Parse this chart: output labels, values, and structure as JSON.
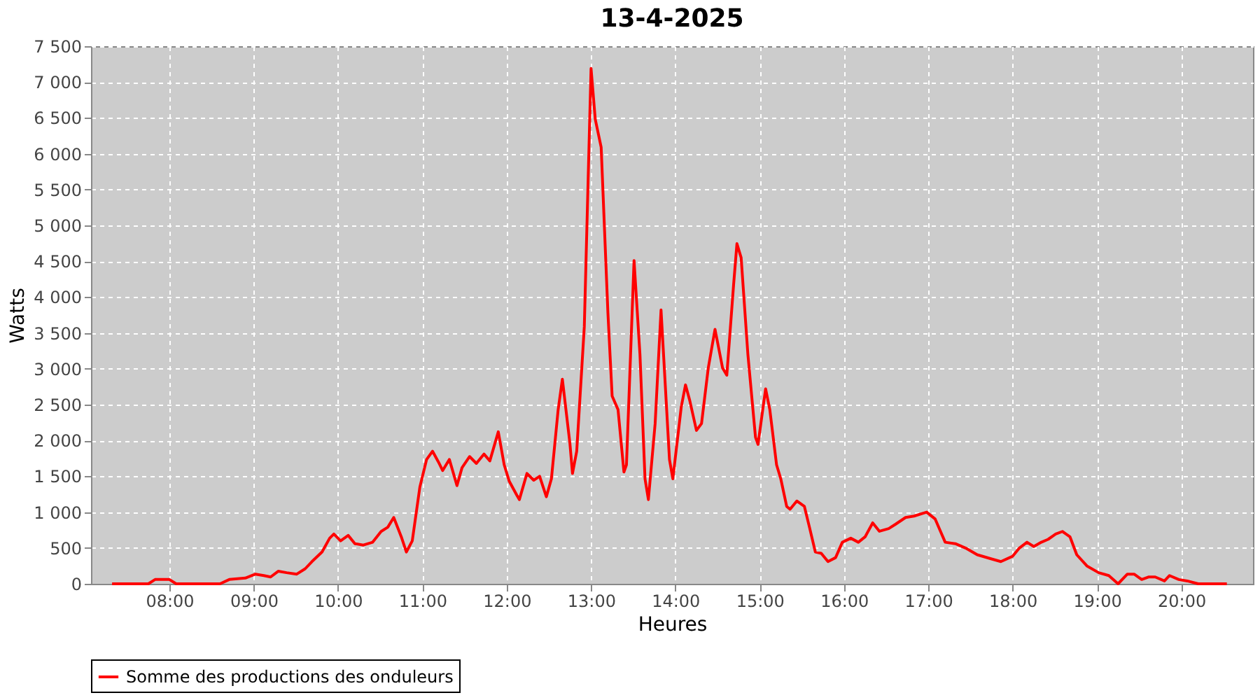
{
  "chart_data": {
    "type": "line",
    "title": "13-4-2025",
    "xlabel": "Heures",
    "ylabel": "Watts",
    "xlim": [
      7.07,
      20.85
    ],
    "xticks": [
      {
        "value": 8,
        "label": "08:00"
      },
      {
        "value": 9,
        "label": "09:00"
      },
      {
        "value": 10,
        "label": "10:00"
      },
      {
        "value": 11,
        "label": "11:00"
      },
      {
        "value": 12,
        "label": "12:00"
      },
      {
        "value": 13,
        "label": "13:00"
      },
      {
        "value": 14,
        "label": "14:00"
      },
      {
        "value": 15,
        "label": "15:00"
      },
      {
        "value": 16,
        "label": "16:00"
      },
      {
        "value": 17,
        "label": "17:00"
      },
      {
        "value": 18,
        "label": "18:00"
      },
      {
        "value": 19,
        "label": "19:00"
      },
      {
        "value": 20,
        "label": "20:00"
      }
    ],
    "ylim": [
      0,
      7500
    ],
    "yticks": [
      0,
      500,
      {
        "value": 1000,
        "label": "1 000"
      },
      {
        "value": 1500,
        "label": "1 500"
      },
      {
        "value": 2000,
        "label": "2 000"
      },
      {
        "value": 2500,
        "label": "2 500"
      },
      {
        "value": 3000,
        "label": "3 000"
      },
      {
        "value": 3500,
        "label": "3 500"
      },
      {
        "value": 4000,
        "label": "4 000"
      },
      {
        "value": 4500,
        "label": "4 500"
      },
      {
        "value": 5000,
        "label": "5 000"
      },
      {
        "value": 5500,
        "label": "5 500"
      },
      {
        "value": 6000,
        "label": "6 000"
      },
      {
        "value": 6500,
        "label": "6 500"
      },
      {
        "value": 7000,
        "label": "7 000"
      },
      {
        "value": 7500,
        "label": "7 500"
      }
    ],
    "grid": true,
    "legend": "bottom",
    "marker": "none",
    "line_style": "solid",
    "series": [
      {
        "name": "Somme des productions des onduleurs",
        "color": "#ff0000",
        "x": [
          7.32,
          7.75,
          7.83,
          8.0,
          8.08,
          8.6,
          8.71,
          8.9,
          9.02,
          9.12,
          9.2,
          9.29,
          9.39,
          9.51,
          9.61,
          9.69,
          9.81,
          9.9,
          9.95,
          10.03,
          10.12,
          10.2,
          10.3,
          10.41,
          10.51,
          10.59,
          10.66,
          10.75,
          10.81,
          10.88,
          10.97,
          11.05,
          11.12,
          11.19,
          11.24,
          11.32,
          11.41,
          11.47,
          11.56,
          11.64,
          11.73,
          11.8,
          11.9,
          11.97,
          12.03,
          12.12,
          12.15,
          12.24,
          12.32,
          12.39,
          12.47,
          12.53,
          12.61,
          12.66,
          12.75,
          12.78,
          12.83,
          12.92,
          13.0,
          13.05,
          13.12,
          13.2,
          13.25,
          13.32,
          13.39,
          13.42,
          13.51,
          13.58,
          13.64,
          13.68,
          13.76,
          13.83,
          13.93,
          13.97,
          14.07,
          14.12,
          14.17,
          14.25,
          14.31,
          14.39,
          14.47,
          14.56,
          14.61,
          14.69,
          14.73,
          14.78,
          14.86,
          14.92,
          14.95,
          14.98,
          15.07,
          15.12,
          15.2,
          15.25,
          15.32,
          15.36,
          15.44,
          15.53,
          15.59,
          15.66,
          15.73,
          15.81,
          15.9,
          15.98,
          16.08,
          16.17,
          16.25,
          16.34,
          16.42,
          16.53,
          16.61,
          16.73,
          16.83,
          16.98,
          17.08,
          17.2,
          17.32,
          17.44,
          17.58,
          17.75,
          17.86,
          18.0,
          18.08,
          18.17,
          18.25,
          18.34,
          18.42,
          18.51,
          18.59,
          18.68,
          18.76,
          18.88,
          19.02,
          19.14,
          19.25,
          19.36,
          19.44,
          19.53,
          19.61,
          19.69,
          19.8,
          19.86,
          19.97,
          20.07,
          20.2,
          20.54
        ],
        "values": [
          0,
          0,
          60,
          60,
          0,
          0,
          60,
          80,
          135,
          115,
          95,
          175,
          155,
          135,
          210,
          310,
          445,
          636,
          694,
          600,
          675,
          560,
          540,
          580,
          730,
          790,
          925,
          655,
          443,
          600,
          1350,
          1735,
          1850,
          1700,
          1580,
          1735,
          1370,
          1620,
          1775,
          1680,
          1810,
          1715,
          2120,
          1660,
          1430,
          1235,
          1175,
          1540,
          1445,
          1500,
          1215,
          1465,
          2430,
          2855,
          1950,
          1540,
          1850,
          3585,
          7190,
          6480,
          6090,
          3780,
          2620,
          2430,
          1560,
          1660,
          4510,
          3200,
          1465,
          1175,
          2235,
          3820,
          1735,
          1465,
          2470,
          2775,
          2560,
          2140,
          2235,
          3010,
          3550,
          3010,
          2910,
          4165,
          4745,
          4550,
          3200,
          2430,
          2045,
          1945,
          2720,
          2430,
          1660,
          1465,
          1080,
          1040,
          1155,
          1080,
          790,
          443,
          425,
          310,
          365,
          580,
          636,
          580,
          655,
          850,
          733,
          770,
          830,
          925,
          945,
          1000,
          905,
          580,
          560,
          500,
          405,
          347,
          310,
          385,
          500,
          580,
          520,
          580,
          620,
          694,
          730,
          655,
          405,
          250,
          155,
          115,
          0,
          135,
          135,
          60,
          95,
          95,
          40,
          115,
          60,
          40,
          0,
          0
        ]
      }
    ]
  }
}
